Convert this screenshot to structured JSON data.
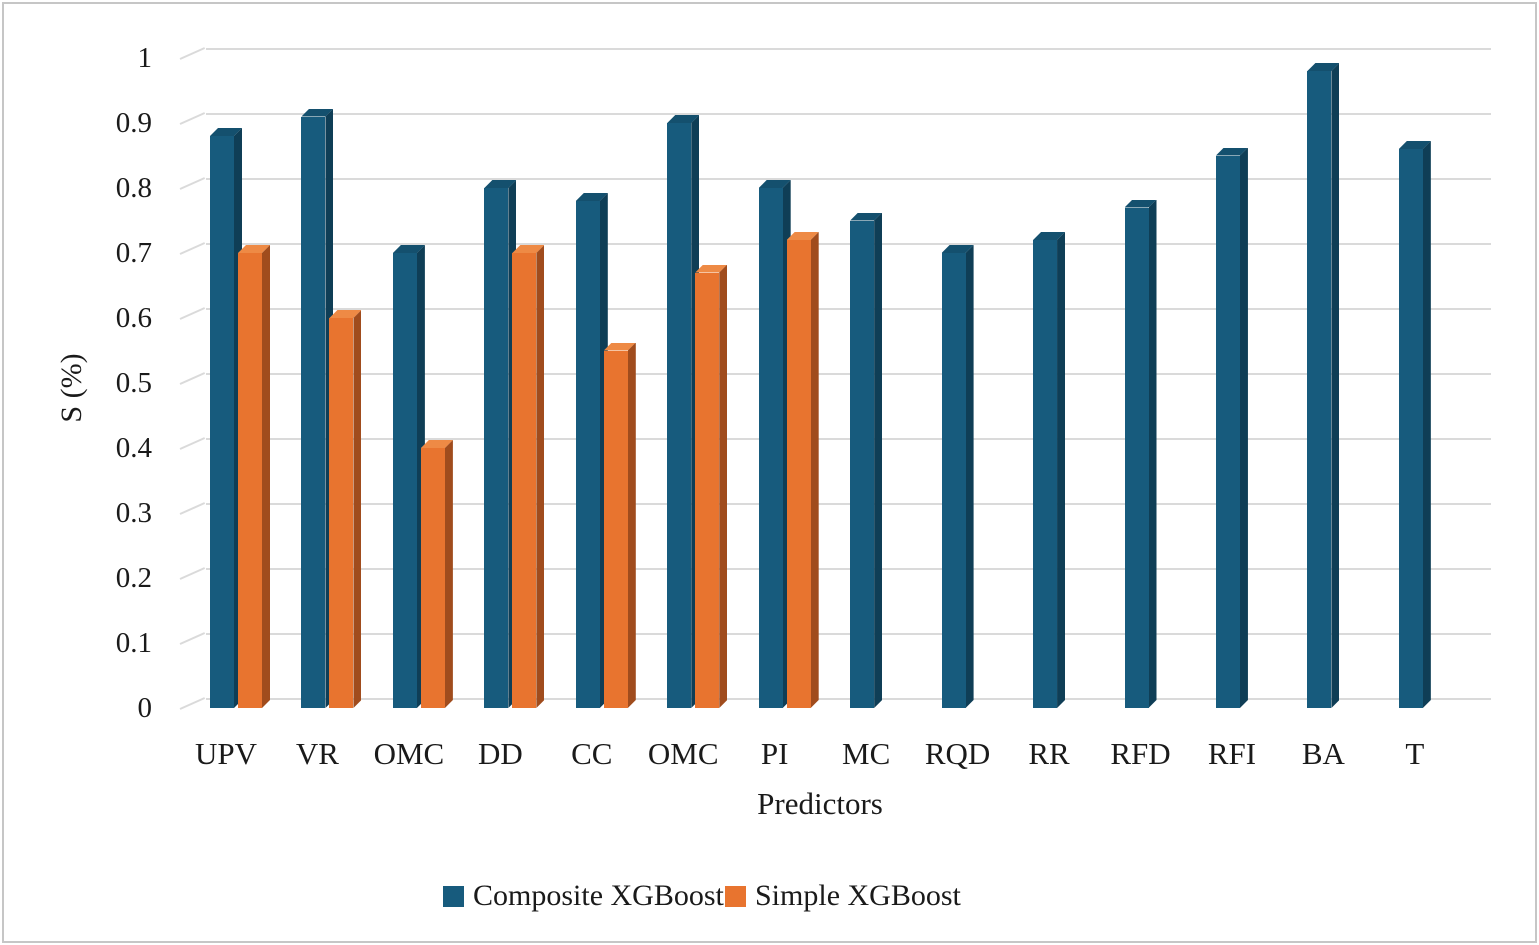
{
  "figure": {
    "background": "#FFFFFF",
    "border_color": "#C6C6C6"
  },
  "chart_data": {
    "type": "bar",
    "style": "3d-extruded-clustered-columns",
    "title": "",
    "xlabel": "Predictors",
    "ylabel": "S (%)",
    "categories": [
      "UPV",
      "VR",
      "OMC",
      "DD",
      "CC",
      "OMC",
      "PI",
      "MC",
      "RQD",
      "RR",
      "RFD",
      "RFI",
      "BA",
      "T"
    ],
    "series": [
      {
        "name": "Composite XGBoost",
        "color": "#175B7D",
        "color_top": "#14506E",
        "color_side": "#0F3E56",
        "values": [
          0.88,
          0.91,
          0.7,
          0.8,
          0.78,
          0.9,
          0.8,
          0.75,
          0.7,
          0.72,
          0.77,
          0.85,
          0.98,
          0.86
        ]
      },
      {
        "name": "Simple XGBoost",
        "color": "#E8742F",
        "color_top": "#EE8A45",
        "color_side": "#A04C1D",
        "values": [
          0.7,
          0.6,
          0.4,
          0.7,
          0.55,
          0.67,
          0.72,
          null,
          null,
          null,
          null,
          null,
          null,
          null
        ]
      }
    ],
    "ylim": [
      0,
      1
    ],
    "ytick_step": 0.1,
    "ytick_labels": [
      "0",
      "0.1",
      "0.2",
      "0.3",
      "0.4",
      "0.5",
      "0.6",
      "0.7",
      "0.8",
      "0.9",
      "1"
    ],
    "grid": true,
    "gridline_color": "#DADADA",
    "legend_position": "bottom"
  }
}
